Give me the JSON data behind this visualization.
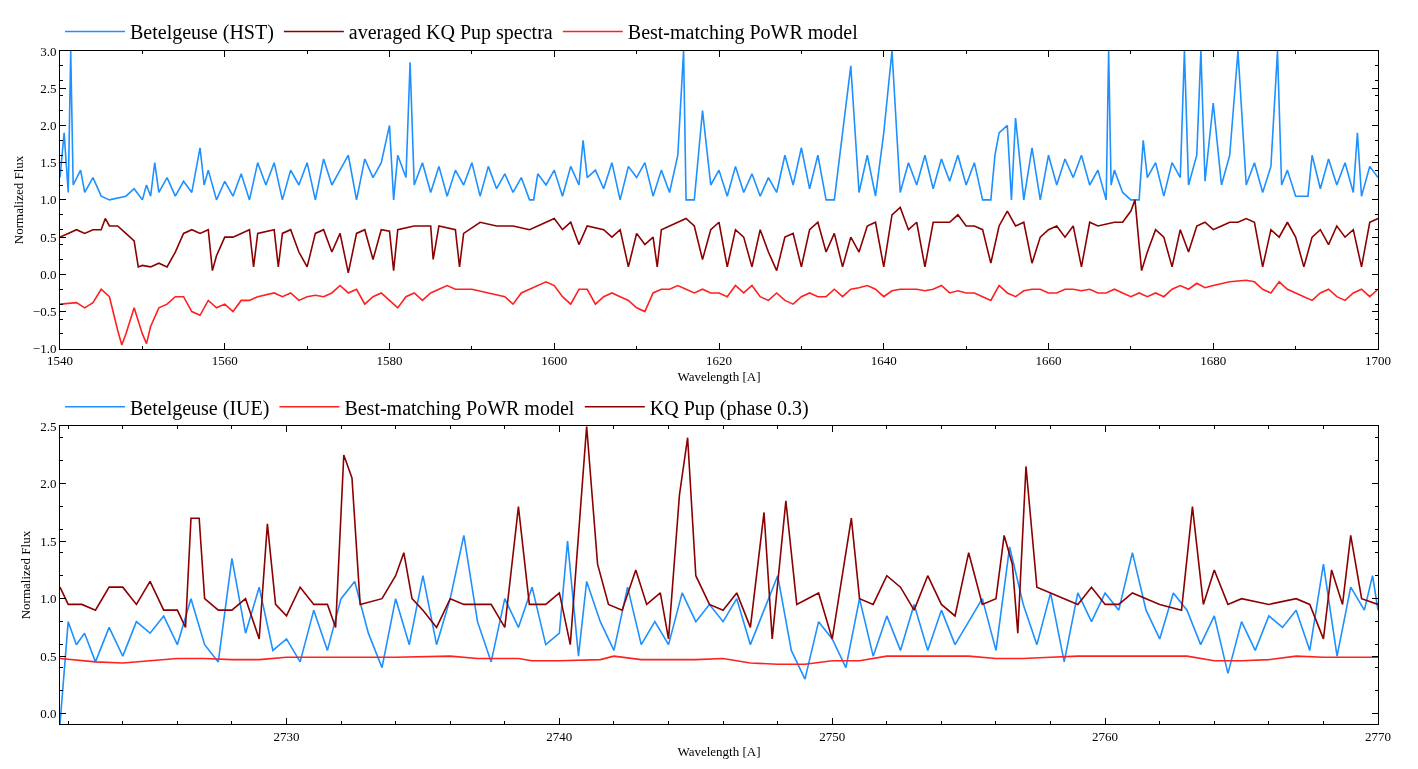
{
  "chart_data": [
    {
      "type": "line",
      "xlabel": "Wavelength [A]",
      "ylabel": "Normalized Flux",
      "xlim": [
        1540,
        1700
      ],
      "ylim": [
        -1.0,
        3.0
      ],
      "xticks": [
        1540,
        1560,
        1580,
        1600,
        1620,
        1640,
        1660,
        1680,
        1700
      ],
      "yticks": [
        {
          "value": -1.0,
          "label": "−1.0"
        },
        {
          "value": -0.5,
          "label": "−0.5"
        },
        {
          "value": 0.0,
          "label": "0.0"
        },
        {
          "value": 0.5,
          "label": "0.5"
        },
        {
          "value": 1.0,
          "label": "1.0"
        },
        {
          "value": 1.5,
          "label": "1.5"
        },
        {
          "value": 2.0,
          "label": "2.0"
        },
        {
          "value": 2.5,
          "label": "2.5"
        },
        {
          "value": 3.0,
          "label": "3.0"
        }
      ],
      "legend": "top",
      "series": [
        {
          "name": "Betelgeuse (HST)",
          "color": "#1e90ff",
          "x": [
            1540,
            1540.5,
            1541,
            1541.3,
            1541.6,
            1542.5,
            1543,
            1544,
            1545,
            1546,
            1548,
            1549,
            1550,
            1550.5,
            1551,
            1551.5,
            1552,
            1553,
            1554,
            1555,
            1556,
            1557,
            1557.5,
            1558,
            1559,
            1560,
            1561,
            1562,
            1563,
            1564,
            1565,
            1566,
            1567,
            1568,
            1569,
            1570,
            1571,
            1572,
            1573,
            1574,
            1575,
            1576,
            1577,
            1578,
            1579,
            1580,
            1580.5,
            1581,
            1582,
            1582.5,
            1583,
            1584,
            1585,
            1586,
            1587,
            1588,
            1589,
            1590,
            1591,
            1592,
            1593,
            1594,
            1595,
            1596,
            1597,
            1597.5,
            1598,
            1599,
            1600,
            1601,
            1602,
            1603,
            1603.5,
            1604,
            1605,
            1606,
            1607,
            1608,
            1609,
            1610,
            1611,
            1612,
            1613,
            1614,
            1615,
            1615.7,
            1616,
            1617,
            1617.5,
            1618,
            1619,
            1620,
            1621,
            1622,
            1623,
            1624,
            1625,
            1626,
            1627,
            1628,
            1629,
            1630,
            1631,
            1632,
            1633,
            1634,
            1635,
            1636,
            1637,
            1638,
            1639,
            1640,
            1641,
            1642,
            1643,
            1644,
            1645,
            1646,
            1647,
            1648,
            1649,
            1650,
            1651,
            1652,
            1653,
            1653.5,
            1654,
            1655,
            1655.5,
            1656,
            1657,
            1658,
            1659,
            1660,
            1661,
            1662,
            1663,
            1664,
            1665,
            1666,
            1667,
            1667.3,
            1667.6,
            1668,
            1669,
            1670,
            1671,
            1671.5,
            1672,
            1673,
            1674,
            1675,
            1676,
            1676.5,
            1677,
            1678,
            1678.5,
            1679,
            1680,
            1681,
            1682,
            1683,
            1684,
            1685,
            1686,
            1687,
            1687.8,
            1688.3,
            1689,
            1690,
            1690.5,
            1691.5,
            1692,
            1693,
            1694,
            1695,
            1696,
            1697,
            1697.5,
            1698,
            1699,
            1700
          ],
          "values": [
            1.3,
            1.9,
            1.1,
            3.0,
            1.2,
            1.4,
            1.1,
            1.3,
            1.05,
            1.0,
            1.05,
            1.15,
            1.0,
            1.2,
            1.05,
            1.5,
            1.1,
            1.3,
            1.05,
            1.25,
            1.1,
            1.7,
            1.2,
            1.4,
            1.0,
            1.25,
            1.05,
            1.35,
            1.0,
            1.5,
            1.2,
            1.5,
            1.0,
            1.4,
            1.2,
            1.5,
            1.0,
            1.55,
            1.2,
            1.4,
            1.6,
            1.0,
            1.55,
            1.3,
            1.5,
            2.0,
            1.0,
            1.6,
            1.3,
            2.85,
            1.2,
            1.5,
            1.1,
            1.45,
            1.05,
            1.4,
            1.2,
            1.5,
            1.05,
            1.45,
            1.15,
            1.35,
            1.1,
            1.3,
            1.0,
            1.0,
            1.35,
            1.2,
            1.4,
            1.05,
            1.45,
            1.2,
            1.8,
            1.3,
            1.4,
            1.15,
            1.5,
            1.0,
            1.45,
            1.3,
            1.5,
            1.05,
            1.4,
            1.1,
            1.6,
            3.0,
            1.0,
            1.0,
            1.6,
            2.2,
            1.2,
            1.4,
            1.05,
            1.45,
            1.1,
            1.35,
            1.05,
            1.3,
            1.1,
            1.6,
            1.2,
            1.7,
            1.15,
            1.6,
            1.0,
            1.0,
            1.9,
            2.8,
            1.1,
            1.6,
            1.05,
            1.9,
            3.0,
            1.1,
            1.5,
            1.2,
            1.6,
            1.15,
            1.55,
            1.25,
            1.6,
            1.2,
            1.5,
            1.0,
            1.0,
            1.6,
            1.9,
            2.0,
            1.0,
            2.1,
            1.0,
            1.7,
            1.0,
            1.6,
            1.2,
            1.55,
            1.3,
            1.6,
            1.2,
            1.4,
            1.0,
            3.0,
            1.2,
            1.4,
            1.1,
            1.0,
            1.0,
            1.8,
            1.3,
            1.5,
            1.05,
            1.5,
            1.3,
            3.0,
            1.2,
            1.6,
            3.0,
            1.25,
            2.3,
            1.2,
            1.6,
            3.0,
            1.2,
            1.5,
            1.1,
            1.45,
            3.0,
            1.2,
            1.4,
            1.05,
            1.05,
            1.05,
            1.6,
            1.15,
            1.55,
            1.2,
            1.5,
            1.1,
            1.9,
            1.05,
            1.45,
            1.3
          ]
        },
        {
          "name": "averaged KQ Pup spectra",
          "color": "#8b0000",
          "x": [
            1540,
            1541,
            1542,
            1543,
            1544,
            1545,
            1545.5,
            1546,
            1547,
            1548,
            1549,
            1549.5,
            1550,
            1551,
            1552,
            1553,
            1554,
            1555,
            1556,
            1557,
            1558,
            1558.5,
            1559,
            1560,
            1561,
            1562,
            1563,
            1563.5,
            1564,
            1566,
            1566.5,
            1567,
            1568,
            1569,
            1570,
            1571,
            1572,
            1573,
            1574,
            1575,
            1576,
            1577,
            1578,
            1579,
            1580,
            1580.5,
            1581,
            1583,
            1585,
            1585.3,
            1586,
            1588,
            1588.5,
            1589,
            1591,
            1593,
            1595,
            1597,
            1599,
            1600,
            1601,
            1602,
            1603,
            1604,
            1606,
            1607,
            1608,
            1609,
            1610,
            1611,
            1612,
            1612.5,
            1613,
            1615,
            1616,
            1617,
            1618,
            1619,
            1620,
            1621,
            1622,
            1623,
            1624,
            1625,
            1626,
            1627,
            1628,
            1629,
            1630,
            1631,
            1632,
            1633,
            1634,
            1635,
            1636,
            1637,
            1638,
            1639,
            1640,
            1641,
            1642,
            1643,
            1644,
            1645,
            1646,
            1648,
            1649,
            1650,
            1651,
            1652,
            1653,
            1654,
            1655,
            1656,
            1657,
            1658,
            1659,
            1660,
            1661,
            1662,
            1663,
            1664,
            1665,
            1666,
            1668,
            1669,
            1670,
            1670.5,
            1671,
            1671.3,
            1672,
            1673,
            1674,
            1675,
            1676,
            1677,
            1678,
            1679,
            1680,
            1681,
            1682,
            1683,
            1684,
            1685,
            1686,
            1687,
            1688,
            1689,
            1690,
            1691,
            1692,
            1693,
            1694,
            1695,
            1696,
            1697,
            1698,
            1699,
            1700
          ],
          "values": [
            0.5,
            0.55,
            0.6,
            0.55,
            0.6,
            0.6,
            0.75,
            0.65,
            0.65,
            0.55,
            0.45,
            0.1,
            0.12,
            0.1,
            0.15,
            0.1,
            0.3,
            0.55,
            0.6,
            0.55,
            0.6,
            0.05,
            0.25,
            0.5,
            0.5,
            0.55,
            0.6,
            0.1,
            0.55,
            0.6,
            0.1,
            0.55,
            0.6,
            0.3,
            0.1,
            0.55,
            0.6,
            0.3,
            0.55,
            0.02,
            0.55,
            0.6,
            0.2,
            0.6,
            0.58,
            0.05,
            0.6,
            0.65,
            0.65,
            0.2,
            0.65,
            0.6,
            0.1,
            0.55,
            0.7,
            0.65,
            0.65,
            0.6,
            0.7,
            0.75,
            0.6,
            0.7,
            0.4,
            0.65,
            0.6,
            0.5,
            0.6,
            0.1,
            0.55,
            0.4,
            0.5,
            0.1,
            0.6,
            0.7,
            0.75,
            0.65,
            0.2,
            0.6,
            0.7,
            0.1,
            0.6,
            0.5,
            0.1,
            0.6,
            0.3,
            0.05,
            0.5,
            0.55,
            0.1,
            0.6,
            0.7,
            0.3,
            0.55,
            0.1,
            0.5,
            0.3,
            0.65,
            0.7,
            0.1,
            0.8,
            0.9,
            0.6,
            0.7,
            0.1,
            0.7,
            0.7,
            0.8,
            0.65,
            0.65,
            0.6,
            0.15,
            0.65,
            0.85,
            0.65,
            0.7,
            0.15,
            0.5,
            0.6,
            0.65,
            0.5,
            0.65,
            0.1,
            0.7,
            0.65,
            0.7,
            0.7,
            0.85,
            1.0,
            0.4,
            0.05,
            0.3,
            0.6,
            0.5,
            0.1,
            0.6,
            0.3,
            0.65,
            0.7,
            0.6,
            0.65,
            0.7,
            0.7,
            0.75,
            0.7,
            0.1,
            0.6,
            0.5,
            0.7,
            0.5,
            0.1,
            0.5,
            0.6,
            0.4,
            0.65,
            0.5,
            0.6,
            0.1,
            0.7,
            0.75
          ]
        },
        {
          "name": "Best-matching PoWR model",
          "color": "#ff2020",
          "x": [
            1540,
            1542,
            1543,
            1544,
            1545,
            1546,
            1547,
            1547.5,
            1548,
            1549,
            1550,
            1550.5,
            1551,
            1552,
            1553,
            1554,
            1555,
            1556,
            1557,
            1558,
            1559,
            1560,
            1561,
            1562,
            1563,
            1564,
            1566,
            1567,
            1568,
            1569,
            1570,
            1571,
            1572,
            1573,
            1574,
            1575,
            1576,
            1577,
            1578,
            1579,
            1580,
            1581,
            1582,
            1583,
            1584,
            1585,
            1586,
            1587,
            1588,
            1589,
            1590,
            1592,
            1594,
            1595,
            1596,
            1597,
            1599,
            1600,
            1601,
            1602,
            1603,
            1604,
            1605,
            1606,
            1607,
            1608,
            1609,
            1610,
            1611,
            1612,
            1613,
            1614,
            1615,
            1616,
            1617,
            1618,
            1619,
            1620,
            1621,
            1622,
            1623,
            1624,
            1625,
            1626,
            1627,
            1628,
            1629,
            1630,
            1631,
            1632,
            1633,
            1634,
            1635,
            1636,
            1637,
            1638,
            1639,
            1640,
            1641,
            1642,
            1643,
            1644,
            1645,
            1646,
            1647,
            1648,
            1649,
            1650,
            1651,
            1652,
            1653,
            1654,
            1655,
            1656,
            1657,
            1658,
            1659,
            1660,
            1661,
            1662,
            1663,
            1664,
            1665,
            1666,
            1667,
            1668,
            1669,
            1670,
            1671,
            1672,
            1673,
            1674,
            1675,
            1676,
            1677,
            1678,
            1679,
            1680,
            1682,
            1684,
            1685,
            1686,
            1687,
            1688,
            1689,
            1690,
            1691,
            1692,
            1693,
            1694,
            1695,
            1696,
            1697,
            1698,
            1699,
            1700
          ],
          "values": [
            -0.4,
            -0.38,
            -0.45,
            -0.38,
            -0.2,
            -0.3,
            -0.75,
            -0.95,
            -0.8,
            -0.45,
            -0.8,
            -0.93,
            -0.7,
            -0.45,
            -0.4,
            -0.3,
            -0.3,
            -0.5,
            -0.55,
            -0.35,
            -0.45,
            -0.4,
            -0.5,
            -0.35,
            -0.35,
            -0.3,
            -0.25,
            -0.3,
            -0.25,
            -0.35,
            -0.3,
            -0.28,
            -0.3,
            -0.25,
            -0.15,
            -0.25,
            -0.2,
            -0.4,
            -0.3,
            -0.25,
            -0.35,
            -0.45,
            -0.3,
            -0.25,
            -0.35,
            -0.25,
            -0.2,
            -0.15,
            -0.2,
            -0.2,
            -0.2,
            -0.25,
            -0.3,
            -0.4,
            -0.25,
            -0.2,
            -0.1,
            -0.15,
            -0.3,
            -0.4,
            -0.2,
            -0.2,
            -0.4,
            -0.3,
            -0.25,
            -0.3,
            -0.35,
            -0.45,
            -0.5,
            -0.25,
            -0.2,
            -0.2,
            -0.15,
            -0.2,
            -0.25,
            -0.2,
            -0.25,
            -0.25,
            -0.3,
            -0.15,
            -0.25,
            -0.15,
            -0.3,
            -0.35,
            -0.25,
            -0.35,
            -0.4,
            -0.3,
            -0.25,
            -0.3,
            -0.3,
            -0.2,
            -0.3,
            -0.2,
            -0.18,
            -0.15,
            -0.2,
            -0.3,
            -0.22,
            -0.2,
            -0.2,
            -0.2,
            -0.22,
            -0.2,
            -0.15,
            -0.25,
            -0.22,
            -0.25,
            -0.25,
            -0.3,
            -0.35,
            -0.15,
            -0.25,
            -0.3,
            -0.22,
            -0.2,
            -0.2,
            -0.25,
            -0.25,
            -0.2,
            -0.2,
            -0.22,
            -0.2,
            -0.25,
            -0.25,
            -0.2,
            -0.25,
            -0.3,
            -0.25,
            -0.3,
            -0.25,
            -0.3,
            -0.2,
            -0.15,
            -0.2,
            -0.12,
            -0.18,
            -0.15,
            -0.1,
            -0.08,
            -0.1,
            -0.2,
            -0.25,
            -0.1,
            -0.2,
            -0.25,
            -0.3,
            -0.35,
            -0.25,
            -0.2,
            -0.3,
            -0.35,
            -0.25,
            -0.2,
            -0.3,
            -0.2
          ]
        }
      ]
    },
    {
      "type": "line",
      "xlabel": "Wavelength [A]",
      "ylabel": "Normalized Flux",
      "xlim": [
        2721.7,
        2770
      ],
      "ylim": [
        -0.09,
        2.5
      ],
      "xticks": [
        2730,
        2740,
        2750,
        2760,
        2770
      ],
      "yticks": [
        {
          "value": 0.0,
          "label": "0.0"
        },
        {
          "value": 0.5,
          "label": "0.5"
        },
        {
          "value": 1.0,
          "label": "1.0"
        },
        {
          "value": 1.5,
          "label": "1.5"
        },
        {
          "value": 2.0,
          "label": "2.0"
        },
        {
          "value": 2.5,
          "label": "2.5"
        }
      ],
      "legend": "top",
      "series": [
        {
          "name": "Betelgeuse (IUE)",
          "color": "#1e90ff",
          "x": [
            2721.7,
            2722,
            2722.3,
            2722.6,
            2723,
            2723.5,
            2724,
            2724.5,
            2725,
            2725.5,
            2726,
            2726.5,
            2727,
            2727.5,
            2728,
            2728.5,
            2729,
            2729.5,
            2730,
            2730.5,
            2731,
            2731.5,
            2732,
            2732.5,
            2733,
            2733.5,
            2734,
            2734.5,
            2735,
            2735.5,
            2736,
            2736.5,
            2737,
            2737.5,
            2738,
            2738.5,
            2739,
            2739.5,
            2740,
            2740.3,
            2740.7,
            2741,
            2741.5,
            2742,
            2742.5,
            2743,
            2743.5,
            2744,
            2744.5,
            2745,
            2745.5,
            2746,
            2746.5,
            2747,
            2747.5,
            2748,
            2748.5,
            2749,
            2749.5,
            2750,
            2750.5,
            2751,
            2751.5,
            2752,
            2752.5,
            2753,
            2753.5,
            2754,
            2754.5,
            2755,
            2755.5,
            2756,
            2756.5,
            2757,
            2757.5,
            2758,
            2758.5,
            2759,
            2759.5,
            2760,
            2760.5,
            2761,
            2761.5,
            2762,
            2762.5,
            2763,
            2763.5,
            2764,
            2764.5,
            2765,
            2765.5,
            2766,
            2766.5,
            2767,
            2767.5,
            2768,
            2768.5,
            2769,
            2769.5,
            2769.8,
            2770
          ],
          "values": [
            -0.09,
            0.8,
            0.6,
            0.7,
            0.45,
            0.75,
            0.5,
            0.8,
            0.7,
            0.85,
            0.6,
            1.0,
            0.6,
            0.45,
            1.35,
            0.7,
            1.1,
            0.55,
            0.65,
            0.45,
            0.9,
            0.55,
            1.0,
            1.15,
            0.7,
            0.4,
            1.0,
            0.6,
            1.2,
            0.6,
            1.0,
            1.55,
            0.8,
            0.45,
            1.0,
            0.75,
            1.1,
            0.6,
            0.7,
            1.5,
            0.5,
            1.15,
            0.8,
            0.55,
            1.1,
            0.6,
            0.8,
            0.6,
            1.05,
            0.8,
            0.95,
            0.8,
            1.0,
            0.6,
            0.9,
            1.2,
            0.55,
            0.3,
            0.8,
            0.65,
            0.4,
            1.0,
            0.5,
            0.85,
            0.55,
            0.95,
            0.55,
            0.9,
            0.6,
            0.8,
            1.0,
            0.55,
            1.45,
            0.95,
            0.6,
            1.05,
            0.45,
            1.05,
            0.8,
            1.05,
            0.9,
            1.4,
            0.9,
            0.65,
            1.05,
            0.9,
            0.6,
            0.85,
            0.35,
            0.8,
            0.55,
            0.85,
            0.75,
            0.9,
            0.55,
            1.3,
            0.5,
            1.1,
            0.9,
            1.2,
            0.9
          ]
        },
        {
          "name": "Best-matching PoWR model",
          "color": "#ff2020",
          "x": [
            2721.7,
            2723,
            2724,
            2725,
            2726,
            2727,
            2728,
            2729,
            2730,
            2732,
            2734,
            2736,
            2737,
            2738.5,
            2739,
            2740,
            2741.5,
            2742,
            2743,
            2745,
            2746,
            2747,
            2748,
            2749,
            2750,
            2751,
            2752,
            2754,
            2755,
            2756,
            2757,
            2758,
            2759,
            2761,
            2762,
            2763,
            2764,
            2765,
            2766,
            2767,
            2768,
            2770
          ],
          "values": [
            0.48,
            0.45,
            0.44,
            0.46,
            0.48,
            0.48,
            0.47,
            0.47,
            0.49,
            0.49,
            0.49,
            0.5,
            0.48,
            0.48,
            0.46,
            0.46,
            0.47,
            0.5,
            0.47,
            0.47,
            0.48,
            0.44,
            0.43,
            0.43,
            0.46,
            0.46,
            0.5,
            0.5,
            0.5,
            0.48,
            0.48,
            0.49,
            0.5,
            0.5,
            0.5,
            0.5,
            0.46,
            0.46,
            0.47,
            0.5,
            0.49,
            0.49
          ]
        },
        {
          "name": "KQ Pup (phase 0.3)",
          "color": "#8b0000",
          "x": [
            2721.7,
            2722,
            2722.5,
            2723,
            2723.5,
            2724,
            2724.5,
            2725,
            2725.5,
            2726,
            2726.3,
            2726.5,
            2726.8,
            2727,
            2727.5,
            2728,
            2728.5,
            2729,
            2729.3,
            2729.6,
            2730,
            2730.5,
            2731,
            2731.5,
            2731.8,
            2732.1,
            2732.4,
            2732.7,
            2733.5,
            2734,
            2734.3,
            2734.6,
            2735,
            2735.5,
            2736,
            2736.5,
            2737.5,
            2738,
            2738.5,
            2738.9,
            2739.5,
            2740,
            2740.4,
            2741,
            2741.4,
            2741.8,
            2742.3,
            2742.8,
            2743.2,
            2743.7,
            2744,
            2744.4,
            2744.7,
            2745,
            2745.5,
            2746,
            2746.5,
            2747,
            2747.5,
            2747.8,
            2748.3,
            2748.7,
            2749.5,
            2750,
            2750.7,
            2751,
            2751.5,
            2752,
            2752.5,
            2753,
            2753.5,
            2754,
            2754.5,
            2755,
            2755.5,
            2756,
            2756.3,
            2756.6,
            2756.8,
            2757.1,
            2757.5,
            2758,
            2759,
            2759.5,
            2760,
            2760.5,
            2761,
            2762,
            2762.8,
            2763.2,
            2763.6,
            2764,
            2764.5,
            2765,
            2766,
            2767,
            2767.5,
            2768,
            2768.3,
            2768.7,
            2769,
            2769.4,
            2770
          ],
          "values": [
            1.1,
            0.95,
            0.95,
            0.9,
            1.1,
            1.1,
            0.95,
            1.15,
            0.9,
            0.9,
            0.75,
            1.7,
            1.7,
            1.0,
            0.9,
            0.9,
            1.0,
            0.65,
            1.65,
            0.95,
            0.85,
            1.1,
            0.95,
            0.95,
            0.75,
            2.25,
            2.05,
            0.95,
            1.0,
            1.2,
            1.4,
            1.0,
            0.9,
            0.75,
            1.0,
            0.95,
            0.95,
            0.75,
            1.8,
            0.95,
            0.95,
            1.05,
            0.6,
            2.5,
            1.3,
            0.95,
            0.9,
            1.25,
            0.95,
            1.05,
            0.65,
            1.9,
            2.4,
            1.2,
            0.95,
            0.9,
            1.05,
            0.75,
            1.75,
            0.65,
            1.85,
            0.95,
            1.05,
            0.65,
            1.7,
            1.0,
            0.95,
            1.2,
            1.1,
            0.9,
            1.2,
            0.95,
            0.85,
            1.4,
            0.95,
            1.0,
            1.55,
            1.3,
            0.7,
            2.15,
            1.1,
            1.05,
            0.95,
            1.1,
            0.95,
            0.95,
            1.05,
            0.95,
            0.9,
            1.8,
            0.95,
            1.25,
            0.95,
            1.0,
            0.95,
            1.0,
            0.95,
            0.65,
            1.25,
            0.95,
            1.55,
            1.0,
            0.95
          ]
        }
      ]
    }
  ]
}
